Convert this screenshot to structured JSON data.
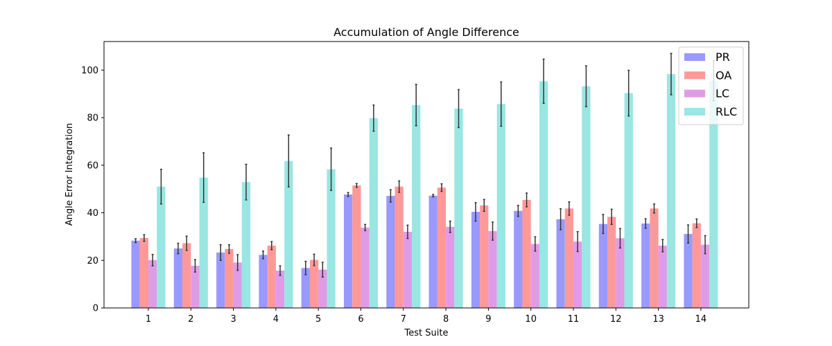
{
  "chart_data": {
    "type": "bar",
    "title": "Accumulation of Angle Difference",
    "xlabel": "Test Suite",
    "ylabel": "Angle Error Integration",
    "categories": [
      "1",
      "2",
      "3",
      "4",
      "5",
      "6",
      "7",
      "8",
      "9",
      "10",
      "11",
      "12",
      "13",
      "14"
    ],
    "ylim": [
      0,
      112
    ],
    "yticks": [
      0,
      20,
      40,
      60,
      80,
      100
    ],
    "grid": false,
    "legend_position": "top-right",
    "series": [
      {
        "name": "PR",
        "color": "#9999ff",
        "values": [
          28.3,
          25.0,
          23.3,
          22.3,
          16.8,
          47.7,
          47.1,
          47.2,
          40.4,
          40.8,
          37.3,
          35.3,
          35.5,
          31.1
        ],
        "errors": [
          0.8,
          2.2,
          3.3,
          1.6,
          2.8,
          0.8,
          2.6,
          0.5,
          3.9,
          2.3,
          4.4,
          4.0,
          2.0,
          3.8
        ]
      },
      {
        "name": "OA",
        "color": "#ff9999",
        "values": [
          29.4,
          27.2,
          24.8,
          26.2,
          20.2,
          51.5,
          51.0,
          50.6,
          43.1,
          45.4,
          41.8,
          38.3,
          41.8,
          35.6
        ],
        "errors": [
          1.4,
          3.0,
          1.8,
          1.7,
          2.4,
          0.8,
          2.4,
          1.6,
          2.5,
          2.9,
          2.8,
          3.2,
          1.9,
          1.8
        ]
      },
      {
        "name": "LC",
        "color": "#e09be6",
        "values": [
          20.1,
          17.7,
          19.1,
          15.7,
          16.1,
          33.8,
          32.0,
          34.1,
          32.3,
          26.9,
          27.9,
          29.3,
          26.2,
          26.6
        ],
        "errors": [
          2.4,
          2.6,
          3.3,
          2.0,
          3.1,
          1.3,
          2.8,
          2.4,
          3.8,
          3.0,
          4.2,
          4.1,
          2.6,
          3.8
        ]
      },
      {
        "name": "RLC",
        "color": "#99e6e2",
        "values": [
          51.0,
          54.8,
          52.9,
          61.8,
          58.3,
          79.8,
          85.3,
          83.8,
          85.7,
          95.3,
          93.2,
          90.3,
          98.3,
          95.5
        ],
        "errors": [
          7.3,
          10.4,
          7.5,
          10.9,
          8.9,
          5.5,
          8.7,
          8.0,
          9.3,
          9.3,
          8.6,
          9.6,
          8.7,
          8.5
        ]
      }
    ]
  }
}
